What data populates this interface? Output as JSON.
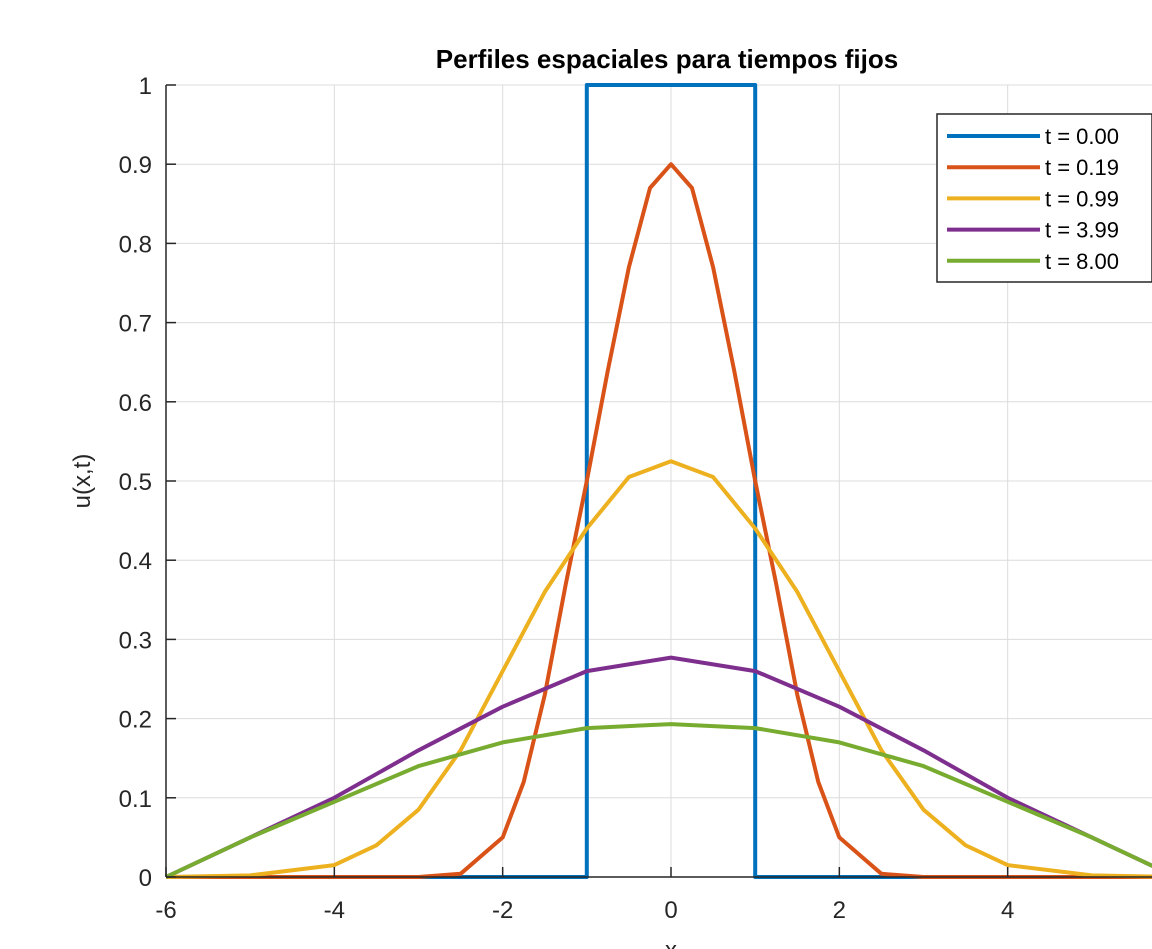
{
  "chart_data": {
    "type": "line",
    "title": "Perfiles espaciales para tiempos fijos",
    "xlabel": "x",
    "ylabel": "u(x,t)",
    "xlim": [
      -6,
      6
    ],
    "ylim": [
      0,
      1
    ],
    "xticks": [
      -6,
      -4,
      -2,
      0,
      2,
      4
    ],
    "xtick_labels": [
      "-6",
      "-4",
      "-2",
      "0",
      "2",
      "4"
    ],
    "yticks": [
      0,
      0.1,
      0.2,
      0.3,
      0.4,
      0.5,
      0.6,
      0.7,
      0.8,
      0.9,
      1
    ],
    "ytick_labels": [
      "0",
      "0.1",
      "0.2",
      "0.3",
      "0.4",
      "0.5",
      "0.6",
      "0.7",
      "0.8",
      "0.9",
      "1"
    ],
    "grid": true,
    "legend_position": "top-right",
    "series": [
      {
        "name": "t = 0.00",
        "color": "#0072BD",
        "x": [
          -6,
          -1,
          -1,
          1,
          1,
          6
        ],
        "y": [
          0,
          0,
          1,
          1,
          0,
          0
        ]
      },
      {
        "name": "t = 0.19",
        "color": "#D95319",
        "x": [
          -6,
          -3,
          -2.5,
          -2,
          -1.75,
          -1.5,
          -1.25,
          -1,
          -0.75,
          -0.5,
          -0.25,
          0,
          0.25,
          0.5,
          0.75,
          1,
          1.25,
          1.5,
          1.75,
          2,
          2.5,
          3,
          6
        ],
        "y": [
          0,
          0,
          0.004,
          0.05,
          0.12,
          0.23,
          0.37,
          0.5,
          0.64,
          0.77,
          0.87,
          0.9,
          0.87,
          0.77,
          0.64,
          0.5,
          0.37,
          0.23,
          0.12,
          0.05,
          0.004,
          0,
          0
        ]
      },
      {
        "name": "t = 0.99",
        "color": "#EDB120",
        "x": [
          -6,
          -5,
          -4,
          -3.5,
          -3,
          -2.5,
          -2,
          -1.5,
          -1,
          -0.5,
          0,
          0.5,
          1,
          1.5,
          2,
          2.5,
          3,
          3.5,
          4,
          5,
          6
        ],
        "y": [
          0,
          0.002,
          0.015,
          0.04,
          0.085,
          0.16,
          0.26,
          0.36,
          0.44,
          0.505,
          0.525,
          0.505,
          0.44,
          0.36,
          0.26,
          0.16,
          0.085,
          0.04,
          0.015,
          0.002,
          0
        ]
      },
      {
        "name": "t = 3.99",
        "color": "#7E2F8E",
        "x": [
          -6,
          -5,
          -4,
          -3,
          -2,
          -1,
          0,
          1,
          2,
          3,
          4,
          5,
          6
        ],
        "y": [
          0,
          0.05,
          0.1,
          0.16,
          0.215,
          0.26,
          0.277,
          0.26,
          0.215,
          0.16,
          0.1,
          0.05,
          0
        ]
      },
      {
        "name": "t = 8.00",
        "color": "#77AC30",
        "x": [
          -6,
          -5,
          -4,
          -3,
          -2,
          -1,
          0,
          1,
          2,
          3,
          4,
          5,
          6
        ],
        "y": [
          0,
          0.05,
          0.095,
          0.14,
          0.17,
          0.188,
          0.193,
          0.188,
          0.17,
          0.14,
          0.095,
          0.05,
          0
        ]
      }
    ]
  }
}
